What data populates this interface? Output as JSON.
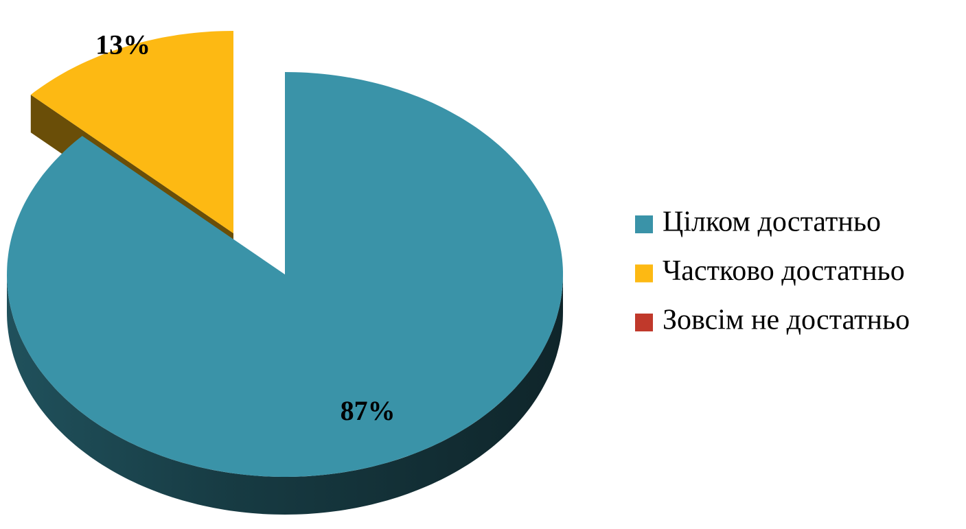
{
  "chart_data": {
    "type": "pie",
    "categories": [
      "Цілком достатньо",
      "Частково достатньо",
      "Зовсім не достатньо"
    ],
    "values": [
      87,
      13,
      0
    ],
    "value_labels": [
      "87%",
      "13%",
      null
    ],
    "colors": [
      "#3a93a8",
      "#fdb913",
      "#c0392b"
    ],
    "legend": "right"
  }
}
